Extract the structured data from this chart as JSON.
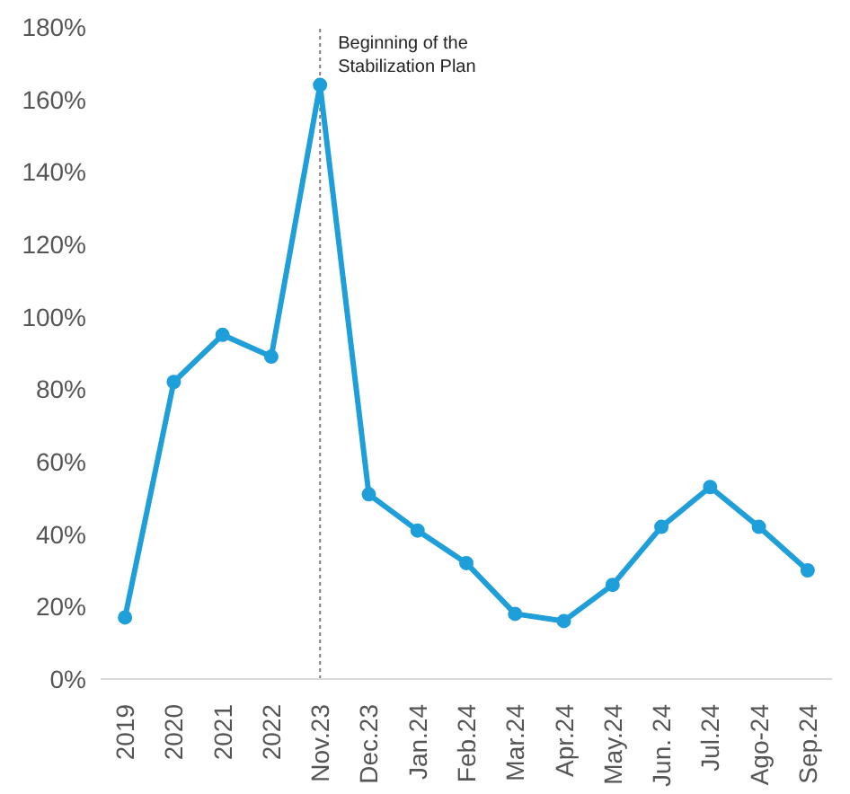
{
  "chart_data": {
    "type": "line",
    "categories": [
      "2019",
      "2020",
      "2021",
      "2022",
      "Nov.23",
      "Dec.23",
      "Jan.24",
      "Feb.24",
      "Mar.24",
      "Apr.24",
      "May.24",
      "Jun. 24",
      "Jul.24",
      "Ago-24",
      "Sep.24"
    ],
    "series": [
      {
        "color": "#1f9fd9",
        "values": [
          17,
          82,
          95,
          89,
          164,
          51,
          41,
          32,
          18,
          16,
          26,
          42,
          53,
          42,
          30
        ]
      }
    ],
    "ylim": [
      0,
      180
    ],
    "yticks": [
      {
        "value": 0,
        "label": "0%"
      },
      {
        "value": 20,
        "label": "20%"
      },
      {
        "value": 40,
        "label": "40%"
      },
      {
        "value": 60,
        "label": "60%"
      },
      {
        "value": 80,
        "label": "80%"
      },
      {
        "value": 100,
        "label": "100%"
      },
      {
        "value": 120,
        "label": "120%"
      },
      {
        "value": 140,
        "label": "140%"
      },
      {
        "value": 160,
        "label": "160%"
      },
      {
        "value": 180,
        "label": "180%"
      }
    ],
    "ref_lines": [
      {
        "axis": "x",
        "value": "Nov.23",
        "label": "Beginning of the Stabilization Plan",
        "color": "#808080",
        "line_style": "dotted"
      }
    ],
    "grid": false,
    "marker": "circle",
    "line_style": "solid"
  }
}
